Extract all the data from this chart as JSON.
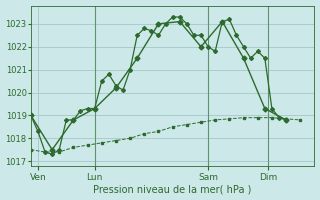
{
  "xlabel": "Pression niveau de la mer( hPa )",
  "bg_color": "#cce8e8",
  "grid_color": "#aacccc",
  "line_color": "#2d6a2d",
  "ylim": [
    1016.8,
    1023.8
  ],
  "xlim": [
    0,
    80
  ],
  "day_labels": [
    "Ven",
    "Lun",
    "Sam",
    "Dim"
  ],
  "day_positions": [
    2,
    18,
    50,
    67
  ],
  "vline_positions": [
    2,
    18,
    50,
    67
  ],
  "series1_x": [
    0,
    2,
    4,
    6,
    8,
    10,
    12,
    14,
    16,
    18,
    20,
    22,
    24,
    26,
    28,
    30,
    32,
    34,
    36,
    38,
    40,
    42,
    44,
    46,
    48,
    50,
    52,
    54,
    56,
    58,
    60,
    62,
    64,
    66,
    68,
    70,
    72
  ],
  "series1_y": [
    1019.0,
    1018.3,
    1017.4,
    1017.3,
    1017.5,
    1018.8,
    1018.8,
    1019.2,
    1019.3,
    1019.3,
    1020.5,
    1020.8,
    1020.3,
    1020.1,
    1021.0,
    1022.5,
    1022.8,
    1022.7,
    1022.5,
    1023.0,
    1023.3,
    1023.3,
    1023.0,
    1022.5,
    1022.5,
    1022.0,
    1021.8,
    1023.1,
    1023.2,
    1022.5,
    1022.0,
    1021.5,
    1021.8,
    1021.5,
    1019.3,
    1018.9,
    1018.8
  ],
  "series2_x": [
    0,
    6,
    12,
    18,
    24,
    30,
    36,
    42,
    48,
    54,
    60,
    66,
    72
  ],
  "series2_y": [
    1019.0,
    1017.5,
    1018.8,
    1019.3,
    1020.2,
    1021.5,
    1023.0,
    1023.1,
    1022.0,
    1023.1,
    1021.5,
    1019.3,
    1018.8
  ],
  "series3_x": [
    0,
    4,
    8,
    12,
    16,
    20,
    24,
    28,
    32,
    36,
    40,
    44,
    48,
    52,
    56,
    60,
    64,
    68,
    72,
    76
  ],
  "series3_y": [
    1017.5,
    1017.4,
    1017.4,
    1017.6,
    1017.7,
    1017.8,
    1017.9,
    1018.0,
    1018.2,
    1018.3,
    1018.5,
    1018.6,
    1018.7,
    1018.8,
    1018.85,
    1018.9,
    1018.9,
    1018.9,
    1018.85,
    1018.8
  ],
  "yticks": [
    1017,
    1018,
    1019,
    1020,
    1021,
    1022,
    1023
  ],
  "figsize": [
    3.2,
    2.0
  ],
  "dpi": 100
}
